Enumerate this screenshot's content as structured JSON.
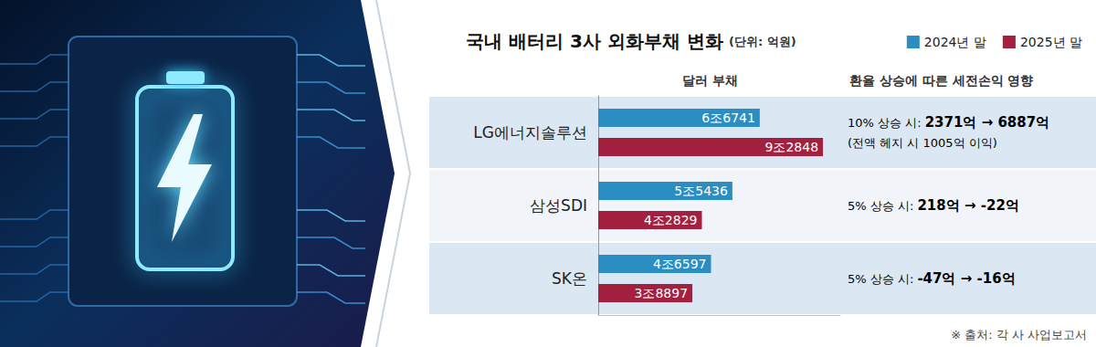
{
  "chart_data": {
    "type": "bar",
    "orientation": "horizontal",
    "title": "국내 배터리 3사 외화부채 변화",
    "subtitle": "(단위: 억원)",
    "categories": [
      "LG에너지솔루션",
      "삼성SDI",
      "SK온"
    ],
    "series": [
      {
        "name": "2024년 말",
        "color": "#2b8ec3",
        "values": [
          66741,
          55436,
          46597
        ],
        "value_labels": [
          "6조6741",
          "5조5436",
          "4조6597"
        ]
      },
      {
        "name": "2025년 말",
        "color": "#a4203f",
        "values": [
          92848,
          42829,
          38897
        ],
        "value_labels": [
          "9조2848",
          "4조2829",
          "3조8897"
        ]
      }
    ],
    "xlim": [
      0,
      100000
    ],
    "tick_labels": "y",
    "grid": false,
    "legend": "top-right",
    "data_labels": true,
    "column_headers": [
      "달러 부채",
      "환율 상승에 따른 세전손익 영향"
    ],
    "annotations": [
      {
        "category": "LG에너지솔루션",
        "texts": [
          "10% 상승 시: 2371억 → 6887억",
          "(전액 헤지 시 1005억 이익)"
        ]
      },
      {
        "category": "삼성SDI",
        "texts": [
          "5% 상승 시: 218억 → -22억"
        ]
      },
      {
        "category": "SK온",
        "texts": [
          "5% 상승 시: -47억 → -16억"
        ]
      }
    ],
    "source": "※ 출처: 각 사 사업보고서"
  }
}
